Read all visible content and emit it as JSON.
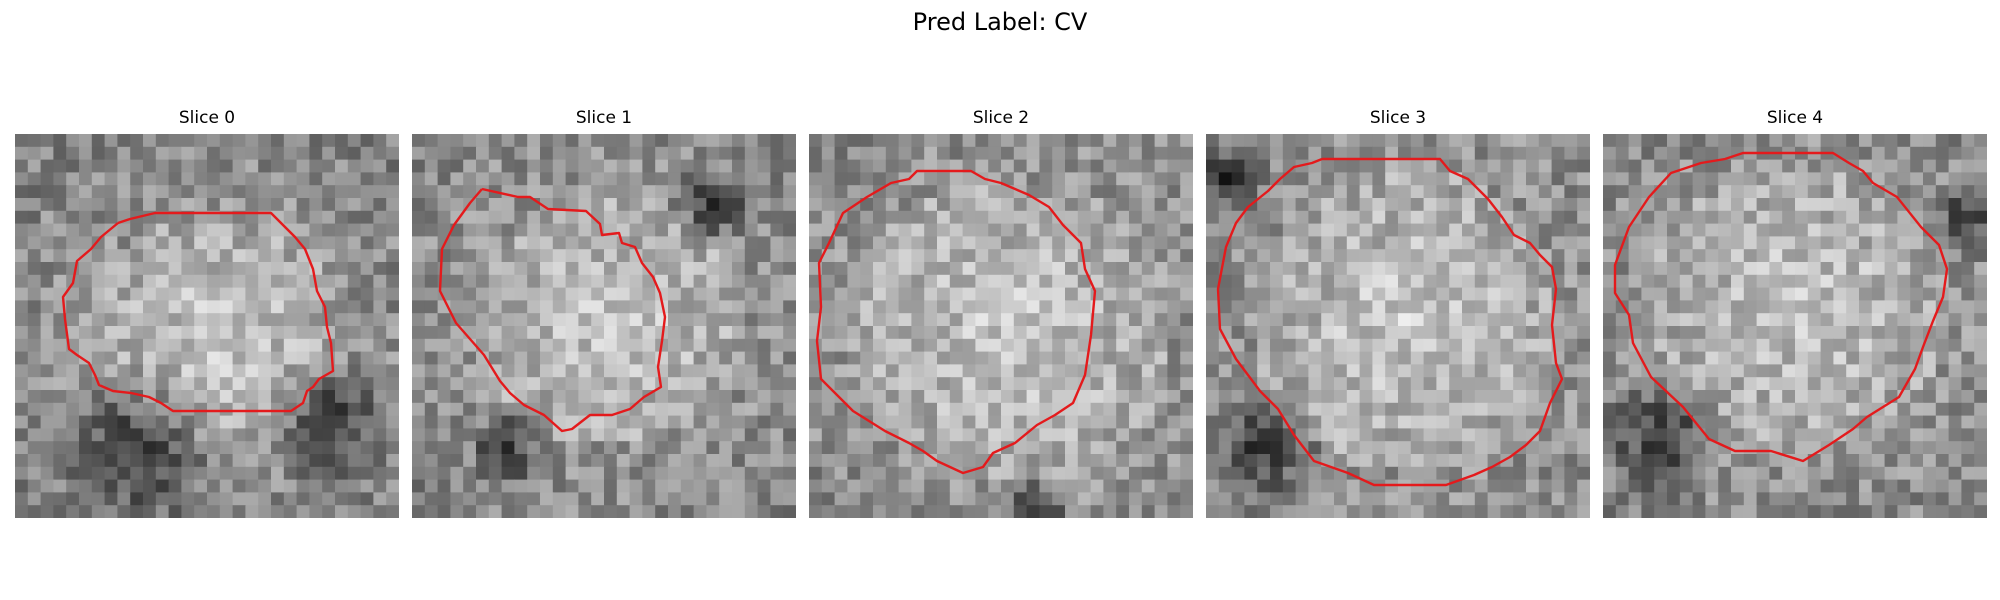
{
  "figure": {
    "title": "Pred Label: CV"
  },
  "panels": [
    {
      "title": "Slice 0"
    },
    {
      "title": "Slice 1"
    },
    {
      "title": "Slice 2"
    },
    {
      "title": "Slice 3"
    },
    {
      "title": "Slice 4"
    }
  ],
  "colors": {
    "contour": "#e41a1c",
    "background": "#ffffff"
  },
  "colormap": "grayscale"
}
